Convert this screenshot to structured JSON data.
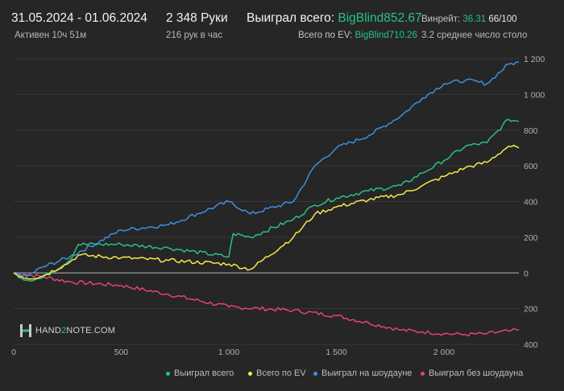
{
  "header": {
    "date_range": "31.05.2024 - 01.06.2024",
    "active": "Активен 10ч 51м",
    "hands": "2 348 Руки",
    "hands_per_hour": "216 рук в час",
    "won_total_label": "Выиграл всего:",
    "won_total_value": "BigBlind852.67",
    "ev_total_label": "Всего по EV:",
    "ev_total_value": "BigBlind710.26",
    "winrate_label": "Винрейт:",
    "winrate_value": "36.31",
    "winrate_per": "66/100",
    "avg_tables": "3.2 среднее число столо"
  },
  "logo": {
    "prefix": "HAND",
    "two": "2",
    "suffix": "NOTE.COM"
  },
  "colors": {
    "green": "#27c281",
    "yellow": "#f5ea4a",
    "blue": "#3d8fe0",
    "pink": "#e83f7a",
    "bg": "#262626",
    "grid": "#3a3a3a"
  },
  "chart_data": {
    "type": "line",
    "xlim": [
      0,
      2348
    ],
    "ylim": [
      -400,
      1200
    ],
    "x_ticks": [
      0,
      500,
      1000,
      1500,
      2000
    ],
    "x_tick_labels": [
      "0",
      "500",
      "1 000",
      "1 500",
      "2 000"
    ],
    "y_ticks": [
      1200,
      1000,
      800,
      600,
      400,
      200,
      0,
      -200,
      -400
    ],
    "y_tick_labels": [
      "1 200",
      "1 000",
      "800",
      "600",
      "400",
      "200",
      "0",
      "200",
      "400"
    ],
    "grid": true,
    "legend_position": "bottom",
    "series": [
      {
        "name": "Выиграл всего",
        "color": "#27c281",
        "x": [
          0,
          60,
          130,
          260,
          300,
          500,
          720,
          1000,
          1020,
          1100,
          1300,
          1400,
          1500,
          1650,
          1800,
          1900,
          2000,
          2100,
          2200,
          2300,
          2348
        ],
        "y": [
          0,
          -40,
          -30,
          70,
          160,
          160,
          140,
          90,
          220,
          200,
          300,
          380,
          420,
          460,
          490,
          560,
          630,
          710,
          730,
          860,
          850
        ]
      },
      {
        "name": "Всего по EV",
        "color": "#f5ea4a",
        "x": [
          0,
          60,
          130,
          260,
          300,
          500,
          720,
          1000,
          1100,
          1300,
          1400,
          1500,
          1650,
          1800,
          1900,
          2000,
          2100,
          2200,
          2300,
          2348
        ],
        "y": [
          0,
          -30,
          -20,
          60,
          100,
          85,
          70,
          50,
          20,
          200,
          330,
          370,
          410,
          440,
          490,
          540,
          590,
          620,
          710,
          700
        ]
      },
      {
        "name": "Выиграл на шоудауне",
        "color": "#3d8fe0",
        "x": [
          0,
          60,
          130,
          260,
          500,
          720,
          1000,
          1100,
          1300,
          1400,
          1500,
          1650,
          1800,
          1900,
          2000,
          2100,
          2200,
          2300,
          2348
        ],
        "y": [
          0,
          -20,
          30,
          90,
          240,
          270,
          400,
          330,
          400,
          600,
          700,
          770,
          880,
          980,
          1060,
          1080,
          1060,
          1170,
          1180
        ]
      },
      {
        "name": "Выиграл без шоудауна",
        "color": "#e83f7a",
        "x": [
          0,
          60,
          130,
          260,
          500,
          720,
          1000,
          1300,
          1500,
          1650,
          1800,
          1900,
          2000,
          2100,
          2200,
          2300,
          2348
        ],
        "y": [
          0,
          -10,
          -20,
          -50,
          -70,
          -120,
          -190,
          -210,
          -240,
          -280,
          -320,
          -330,
          -340,
          -345,
          -340,
          -325,
          -320
        ]
      }
    ]
  }
}
